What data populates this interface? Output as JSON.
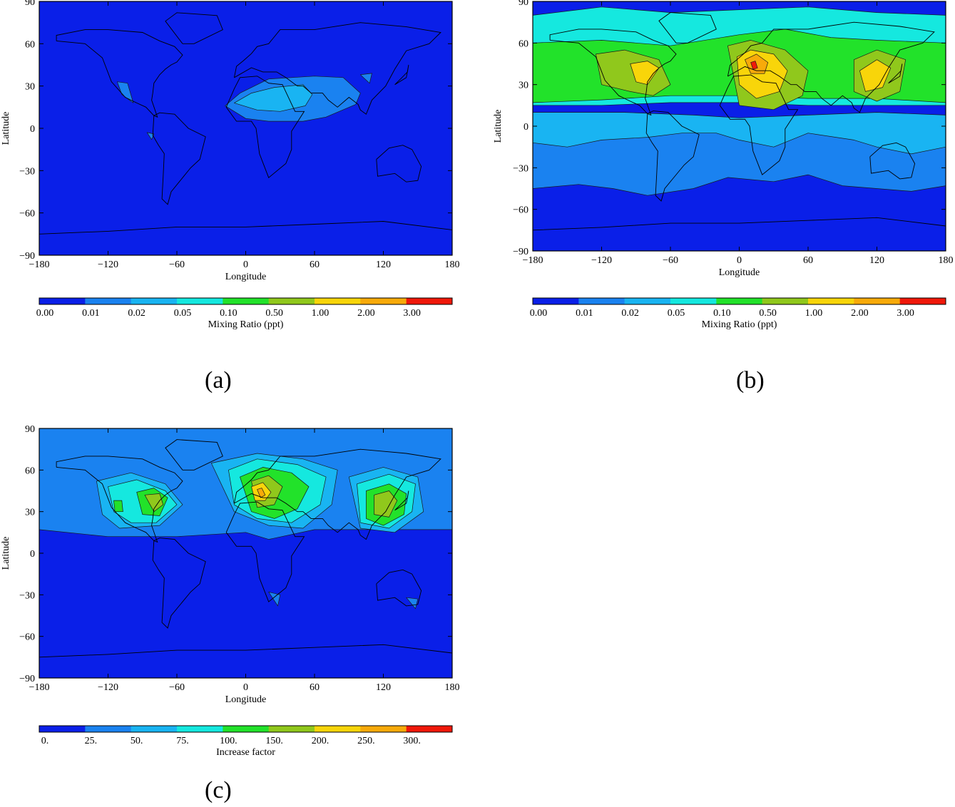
{
  "chart_data": [
    {
      "type": "heatmap",
      "panel_label": "(a)",
      "xlabel": "Longitude",
      "ylabel": "Latitude",
      "xlim": [
        -180,
        180
      ],
      "ylim": [
        -90,
        90
      ],
      "xticks": [
        "−180",
        "−120",
        "−60",
        "0",
        "60",
        "120",
        "180"
      ],
      "xtick_values": [
        -180,
        -120,
        -60,
        0,
        60,
        120,
        180
      ],
      "yticks": [
        "90",
        "60",
        "30",
        "0",
        "−30",
        "−60",
        "−90"
      ],
      "ytick_values": [
        90,
        60,
        30,
        0,
        -30,
        -60,
        -90
      ],
      "colorbar": {
        "label": "Mixing Ratio (ppt)",
        "levels": [
          "0.00",
          "0.01",
          "0.02",
          "0.05",
          "0.10",
          "0.50",
          "1.00",
          "2.00",
          "3.00"
        ],
        "colors": [
          "#0a1fe8",
          "#1a82f0",
          "#19b4f2",
          "#15e8df",
          "#22e22a",
          "#90c81c",
          "#f8d50a",
          "#f8aa0a",
          "#f0180a"
        ]
      },
      "background_level_index": 0,
      "regions": [
        {
          "level_index": 1,
          "lon": [
            -18,
            -5,
            20,
            40,
            60,
            85,
            100,
            96,
            70,
            50,
            20,
            0,
            -18
          ],
          "lat": [
            16,
            25,
            35,
            36,
            37,
            36,
            25,
            17,
            8,
            5,
            5,
            7,
            16
          ]
        },
        {
          "level_index": 1,
          "lon": [
            -112,
            -103,
            -98,
            -108,
            -112
          ],
          "lat": [
            33,
            32,
            18,
            24,
            33
          ]
        },
        {
          "level_index": 1,
          "lon": [
            -86,
            -80,
            -82,
            -86
          ],
          "lat": [
            -3,
            -4,
            -8,
            -3
          ]
        },
        {
          "level_index": 1,
          "lon": [
            100,
            110,
            108,
            100
          ],
          "lat": [
            38,
            39,
            32,
            38
          ]
        },
        {
          "level_index": 2,
          "lon": [
            -10,
            5,
            25,
            50,
            58,
            52,
            30,
            10,
            -10
          ],
          "lat": [
            18,
            25,
            29,
            31,
            24,
            16,
            12,
            13,
            18
          ]
        }
      ]
    },
    {
      "type": "heatmap",
      "panel_label": "(b)",
      "xlabel": "Longitude",
      "ylabel": "Latitude",
      "xlim": [
        -180,
        180
      ],
      "ylim": [
        -90,
        90
      ],
      "xticks": [
        "−180",
        "−120",
        "−60",
        "0",
        "60",
        "120",
        "180"
      ],
      "xtick_values": [
        -180,
        -120,
        -60,
        0,
        60,
        120,
        180
      ],
      "yticks": [
        "90",
        "60",
        "30",
        "0",
        "−30",
        "−60",
        "−90"
      ],
      "ytick_values": [
        90,
        60,
        30,
        0,
        -30,
        -60,
        -90
      ],
      "colorbar": {
        "label": "Mixing Ratio (ppt)",
        "levels": [
          "0.00",
          "0.01",
          "0.02",
          "0.05",
          "0.10",
          "0.50",
          "1.00",
          "2.00",
          "3.00"
        ],
        "colors": [
          "#0a1fe8",
          "#1a82f0",
          "#19b4f2",
          "#15e8df",
          "#22e22a",
          "#90c81c",
          "#f8d50a",
          "#f8aa0a",
          "#f0180a"
        ]
      },
      "background_level_index": 0,
      "regions": [
        {
          "level_index": 1,
          "lon": [
            -180,
            -60,
            0,
            60,
            120,
            180,
            180,
            150,
            120,
            90,
            60,
            30,
            -10,
            -40,
            -80,
            -110,
            -140,
            -180
          ],
          "lat": [
            2,
            2,
            0,
            2,
            2,
            2,
            -43,
            -47,
            -45,
            -43,
            -35,
            -40,
            -37,
            -45,
            -50,
            -45,
            -42,
            -45
          ]
        },
        {
          "level_index": 2,
          "lon": [
            -180,
            -100,
            -40,
            0,
            60,
            120,
            180,
            180,
            150,
            120,
            100,
            60,
            30,
            0,
            -20,
            -50,
            -80,
            -120,
            -150,
            -180
          ],
          "lat": [
            10,
            10,
            8,
            6,
            8,
            10,
            8,
            -15,
            -20,
            -15,
            -10,
            -5,
            -15,
            -10,
            -5,
            -5,
            -8,
            -10,
            -15,
            -12
          ]
        },
        {
          "level_index": 3,
          "lon": [
            -180,
            -120,
            -60,
            0,
            60,
            120,
            180,
            180,
            120,
            60,
            0,
            -60,
            -120,
            -180
          ],
          "lat": [
            80,
            86,
            82,
            84,
            86,
            82,
            80,
            15,
            15,
            15,
            17,
            17,
            15,
            15
          ]
        },
        {
          "level_index": 4,
          "lon": [
            -180,
            -120,
            -60,
            0,
            40,
            80,
            120,
            180,
            180,
            120,
            60,
            0,
            -60,
            -120,
            -180
          ],
          "lat": [
            60,
            62,
            58,
            66,
            70,
            64,
            62,
            60,
            17,
            20,
            20,
            22,
            22,
            19,
            17
          ]
        },
        {
          "level_index": 5,
          "lon": [
            -125,
            -100,
            -70,
            -60,
            -75,
            -95,
            -120,
            -125
          ],
          "lat": [
            52,
            55,
            48,
            30,
            22,
            25,
            30,
            52
          ]
        },
        {
          "level_index": 5,
          "lon": [
            -10,
            10,
            40,
            60,
            55,
            30,
            0,
            -10
          ],
          "lat": [
            58,
            62,
            55,
            40,
            22,
            12,
            15,
            58
          ]
        },
        {
          "level_index": 5,
          "lon": [
            100,
            120,
            145,
            140,
            120,
            100,
            100
          ],
          "lat": [
            48,
            55,
            48,
            25,
            18,
            25,
            48
          ]
        },
        {
          "level_index": 6,
          "lon": [
            -95,
            -80,
            -70,
            -80,
            -90,
            -95
          ],
          "lat": [
            45,
            47,
            42,
            30,
            32,
            45
          ]
        },
        {
          "level_index": 6,
          "lon": [
            -2,
            10,
            30,
            42,
            35,
            15,
            0,
            -2
          ],
          "lat": [
            50,
            55,
            52,
            40,
            25,
            20,
            30,
            50
          ]
        },
        {
          "level_index": 6,
          "lon": [
            105,
            120,
            132,
            125,
            110,
            105
          ],
          "lat": [
            40,
            48,
            42,
            28,
            25,
            40
          ]
        },
        {
          "level_index": 7,
          "lon": [
            5,
            15,
            25,
            22,
            10,
            5
          ],
          "lat": [
            48,
            52,
            46,
            38,
            38,
            48
          ]
        },
        {
          "level_index": 8,
          "lon": [
            10,
            14,
            16,
            12,
            10
          ],
          "lat": [
            46,
            47,
            42,
            41,
            46
          ]
        }
      ]
    },
    {
      "type": "heatmap",
      "panel_label": "(c)",
      "xlabel": "Longitude",
      "ylabel": "Latitude",
      "xlim": [
        -180,
        180
      ],
      "ylim": [
        -90,
        90
      ],
      "xticks": [
        "−180",
        "−120",
        "−60",
        "0",
        "60",
        "120",
        "180"
      ],
      "xtick_values": [
        -180,
        -120,
        -60,
        0,
        60,
        120,
        180
      ],
      "yticks": [
        "90",
        "60",
        "30",
        "0",
        "−30",
        "−60",
        "−90"
      ],
      "ytick_values": [
        90,
        60,
        30,
        0,
        -30,
        -60,
        -90
      ],
      "colorbar": {
        "label": "Increase factor",
        "levels": [
          "0.",
          "25.",
          "50.",
          "75.",
          "100.",
          "150.",
          "200.",
          "250.",
          "300."
        ],
        "colors": [
          "#0a1fe8",
          "#1a82f0",
          "#19b4f2",
          "#15e8df",
          "#22e22a",
          "#90c81c",
          "#f8d50a",
          "#f8aa0a",
          "#f0180a"
        ]
      },
      "background_level_index": 0,
      "regions": [
        {
          "level_index": 1,
          "lon": [
            -180,
            -120,
            -60,
            0,
            60,
            120,
            180,
            180,
            120,
            60,
            20,
            0,
            -60,
            -120,
            -180
          ],
          "lat": [
            90,
            90,
            90,
            90,
            90,
            90,
            90,
            17,
            17,
            17,
            10,
            15,
            12,
            12,
            17
          ]
        },
        {
          "level_index": 1,
          "lon": [
            20,
            30,
            28,
            20
          ],
          "lat": [
            -28,
            -30,
            -38,
            -28
          ]
        },
        {
          "level_index": 1,
          "lon": [
            140,
            150,
            148,
            140
          ],
          "lat": [
            -32,
            -33,
            -40,
            -32
          ]
        },
        {
          "level_index": 2,
          "lon": [
            -130,
            -100,
            -70,
            -55,
            -75,
            -110,
            -125,
            -130
          ],
          "lat": [
            52,
            58,
            50,
            35,
            20,
            18,
            28,
            52
          ]
        },
        {
          "level_index": 2,
          "lon": [
            -30,
            10,
            50,
            80,
            75,
            50,
            20,
            -10,
            -30
          ],
          "lat": [
            65,
            72,
            68,
            60,
            35,
            18,
            20,
            30,
            65
          ]
        },
        {
          "level_index": 2,
          "lon": [
            90,
            120,
            150,
            155,
            130,
            100,
            90
          ],
          "lat": [
            55,
            62,
            55,
            30,
            15,
            18,
            55
          ]
        },
        {
          "level_index": 3,
          "lon": [
            -120,
            -95,
            -70,
            -60,
            -78,
            -100,
            -115,
            -120
          ],
          "lat": [
            48,
            53,
            45,
            35,
            22,
            22,
            30,
            48
          ]
        },
        {
          "level_index": 3,
          "lon": [
            -15,
            10,
            45,
            70,
            65,
            40,
            10,
            -10,
            -15
          ],
          "lat": [
            60,
            68,
            64,
            55,
            35,
            22,
            25,
            35,
            60
          ]
        },
        {
          "level_index": 3,
          "lon": [
            97,
            125,
            148,
            145,
            125,
            100,
            97
          ],
          "lat": [
            50,
            57,
            50,
            30,
            18,
            22,
            50
          ]
        },
        {
          "level_index": 4,
          "lon": [
            -95,
            -80,
            -68,
            -75,
            -90,
            -95
          ],
          "lat": [
            44,
            47,
            40,
            27,
            28,
            44
          ]
        },
        {
          "level_index": 4,
          "lon": [
            -5,
            15,
            40,
            55,
            45,
            25,
            5,
            -5
          ],
          "lat": [
            55,
            62,
            58,
            48,
            32,
            25,
            30,
            55
          ]
        },
        {
          "level_index": 4,
          "lon": [
            105,
            125,
            140,
            138,
            120,
            105,
            105
          ],
          "lat": [
            45,
            50,
            43,
            28,
            20,
            25,
            45
          ]
        },
        {
          "level_index": 4,
          "lon": [
            -115,
            -108,
            -107,
            -114,
            -115
          ],
          "lat": [
            38,
            38,
            30,
            30,
            38
          ]
        },
        {
          "level_index": 5,
          "lon": [
            -88,
            -75,
            -72,
            -80,
            -88
          ],
          "lat": [
            42,
            43,
            35,
            30,
            42
          ]
        },
        {
          "level_index": 5,
          "lon": [
            5,
            20,
            32,
            25,
            10,
            5
          ],
          "lat": [
            52,
            56,
            48,
            35,
            33,
            52
          ]
        },
        {
          "level_index": 5,
          "lon": [
            112,
            125,
            132,
            125,
            112,
            112
          ],
          "lat": [
            42,
            45,
            38,
            26,
            28,
            42
          ]
        },
        {
          "level_index": 6,
          "lon": [
            5,
            15,
            22,
            17,
            8,
            5
          ],
          "lat": [
            48,
            51,
            44,
            38,
            38,
            48
          ]
        },
        {
          "level_index": 7,
          "lon": [
            10,
            14,
            17,
            13,
            10
          ],
          "lat": [
            46,
            47,
            42,
            40,
            46
          ]
        }
      ]
    }
  ]
}
